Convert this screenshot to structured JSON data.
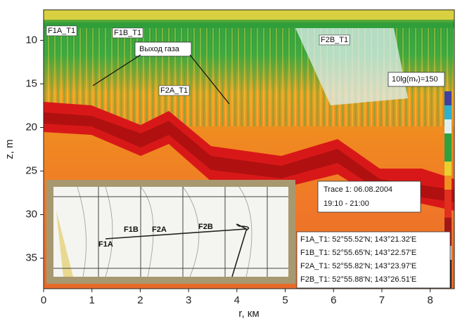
{
  "chart_data": {
    "type": "heatmap",
    "xlabel": "r, км",
    "ylabel": "z, m",
    "xlim": [
      0,
      8.5
    ],
    "xticks": [
      0,
      1,
      2,
      3,
      4,
      5,
      6,
      7,
      8
    ],
    "ylim": [
      6.5,
      38.5
    ],
    "yticks": [
      10,
      15,
      20,
      25,
      30,
      35
    ],
    "annotations": [
      "F1A_T1",
      "F1B_T1",
      "Выход газа",
      "F2B_T1",
      "F2A_T1"
    ],
    "colorbar_label": "10lg(mᵥ)=150",
    "trace": [
      "Trace 1: 06.08.2004",
      "19:10 - 21:00"
    ],
    "coordinates": [
      "F1A_T1: 52°55.52'N; 143°21.32'E",
      "F1B_T1: 52°55.65'N; 143°22.57'E",
      "F2A_T1: 52°55.82'N; 143°23.97'E",
      "F2B_T1: 52°55.88'N; 143°26.51'E"
    ],
    "map_labels": [
      "F1A",
      "F1B",
      "F2A",
      "F2B"
    ]
  }
}
